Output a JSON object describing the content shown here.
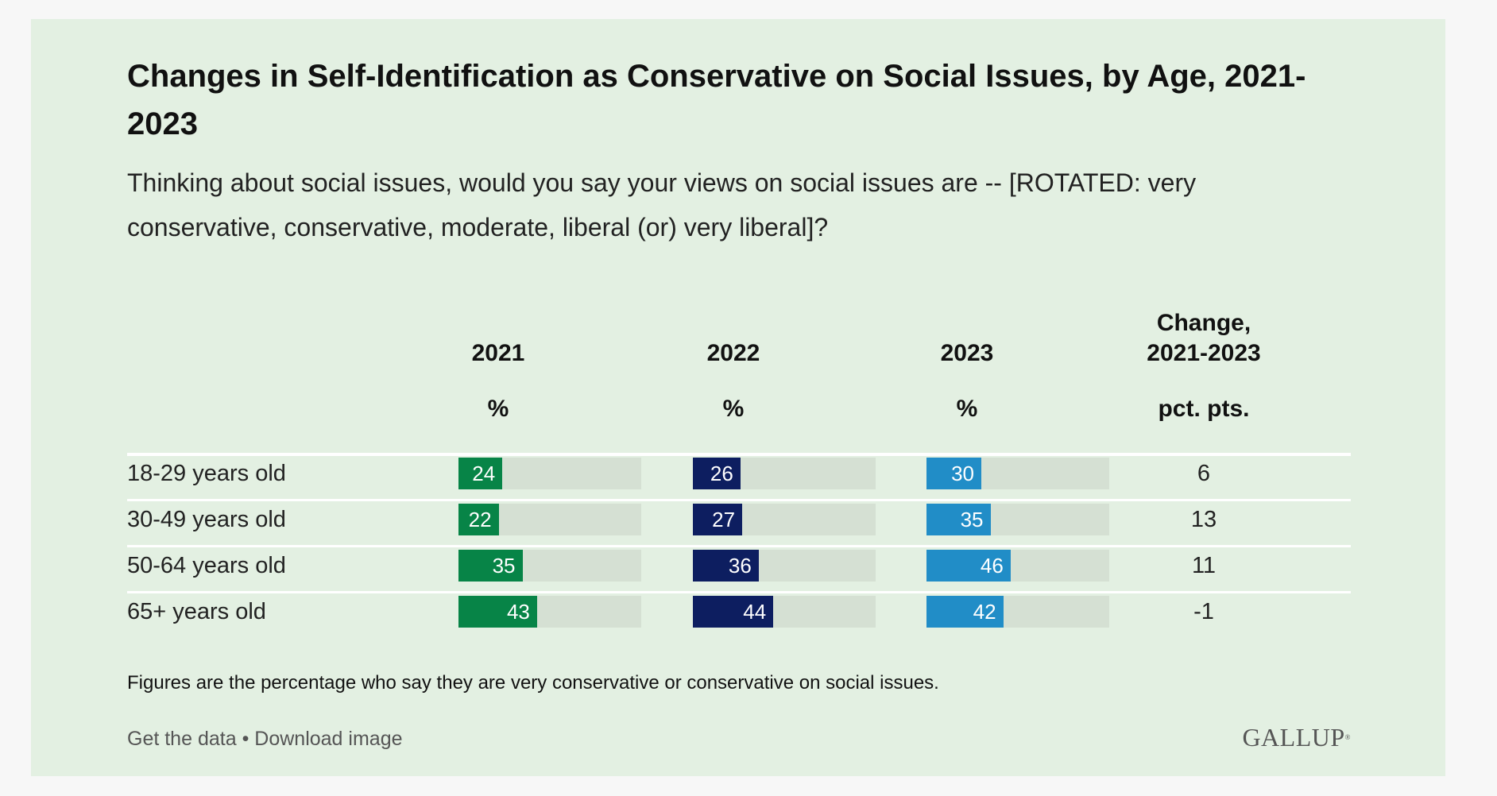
{
  "title": "Changes in Self-Identification as Conservative on Social Issues, by Age, 2021-2023",
  "subtitle": "Thinking about social issues, would you say your views on social issues are -- [ROTATED: very conservative, conservative, moderate, liberal (or) very liberal]?",
  "columns": [
    {
      "year": "2021",
      "unit": "%",
      "color": "#078447"
    },
    {
      "year": "2022",
      "unit": "%",
      "color": "#0d1e60"
    },
    {
      "year": "2023",
      "unit": "%",
      "color": "#218dc7"
    }
  ],
  "change_header": {
    "line1": "Change,",
    "line2": "2021-2023",
    "unit": "pct. pts."
  },
  "rows": [
    {
      "label": "18-29 years old",
      "values": [
        24,
        26,
        30
      ],
      "change": "6"
    },
    {
      "label": "30-49 years old",
      "values": [
        22,
        27,
        35
      ],
      "change": "13"
    },
    {
      "label": "50-64 years old",
      "values": [
        35,
        36,
        46
      ],
      "change": "11"
    },
    {
      "label": "65+ years old",
      "values": [
        43,
        44,
        42
      ],
      "change": "-1"
    }
  ],
  "footnote": "Figures are the percentage who say they are very conservative or conservative on social issues.",
  "links": {
    "get_data": "Get the data",
    "separator": "•",
    "download": "Download image"
  },
  "logo": {
    "text": "GALLUP",
    "mark": "®"
  },
  "chart_data": {
    "type": "bar",
    "orientation": "horizontal",
    "title": "Changes in Self-Identification as Conservative on Social Issues, by Age, 2021-2023",
    "categories": [
      "18-29 years old",
      "30-49 years old",
      "50-64 years old",
      "65+ years old"
    ],
    "series": [
      {
        "name": "2021",
        "values": [
          24,
          22,
          35,
          43
        ]
      },
      {
        "name": "2022",
        "values": [
          26,
          27,
          36,
          44
        ]
      },
      {
        "name": "2023",
        "values": [
          30,
          35,
          46,
          42
        ]
      }
    ],
    "change_2021_2023": [
      6,
      13,
      11,
      -1
    ],
    "unit": "%",
    "xlim": [
      0,
      100
    ],
    "grid": false,
    "legend": "none"
  }
}
